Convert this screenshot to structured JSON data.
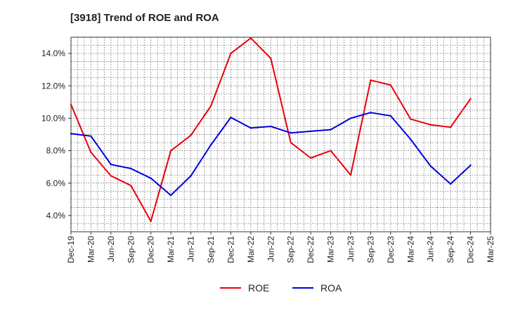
{
  "chart_data": {
    "type": "line",
    "title": "[3918]  Trend of ROE and ROA",
    "xlabel": "",
    "ylabel": "",
    "x": [
      "Dec-19",
      "Mar-20",
      "Jun-20",
      "Sep-20",
      "Dec-20",
      "Mar-21",
      "Jun-21",
      "Sep-21",
      "Dec-21",
      "Mar-22",
      "Jun-22",
      "Sep-22",
      "Dec-22",
      "Mar-23",
      "Jun-23",
      "Sep-23",
      "Dec-23",
      "Mar-24",
      "Jun-24",
      "Sep-24",
      "Dec-24",
      "Mar-25"
    ],
    "ylim": [
      3.0,
      15.0
    ],
    "yticks": [
      "4.0%",
      "6.0%",
      "8.0%",
      "10.0%",
      "12.0%",
      "14.0%"
    ],
    "yticks_values": [
      4,
      6,
      8,
      10,
      12,
      14
    ],
    "grid": true,
    "legend_position": "bottom",
    "series": [
      {
        "name": "ROE",
        "color": "#e8000b",
        "values": [
          10.85,
          7.9,
          6.45,
          5.85,
          3.65,
          8.0,
          8.95,
          10.75,
          14.0,
          14.95,
          13.7,
          8.5,
          7.55,
          8.0,
          6.5,
          12.35,
          12.05,
          9.95,
          9.6,
          9.45,
          11.2,
          null
        ]
      },
      {
        "name": "ROA",
        "color": "#0000e0",
        "values": [
          9.05,
          8.9,
          7.15,
          6.9,
          6.3,
          5.25,
          6.45,
          8.35,
          10.05,
          9.4,
          9.5,
          9.1,
          9.2,
          9.3,
          10.0,
          10.35,
          10.15,
          8.7,
          7.05,
          5.95,
          7.1,
          null
        ]
      }
    ]
  }
}
